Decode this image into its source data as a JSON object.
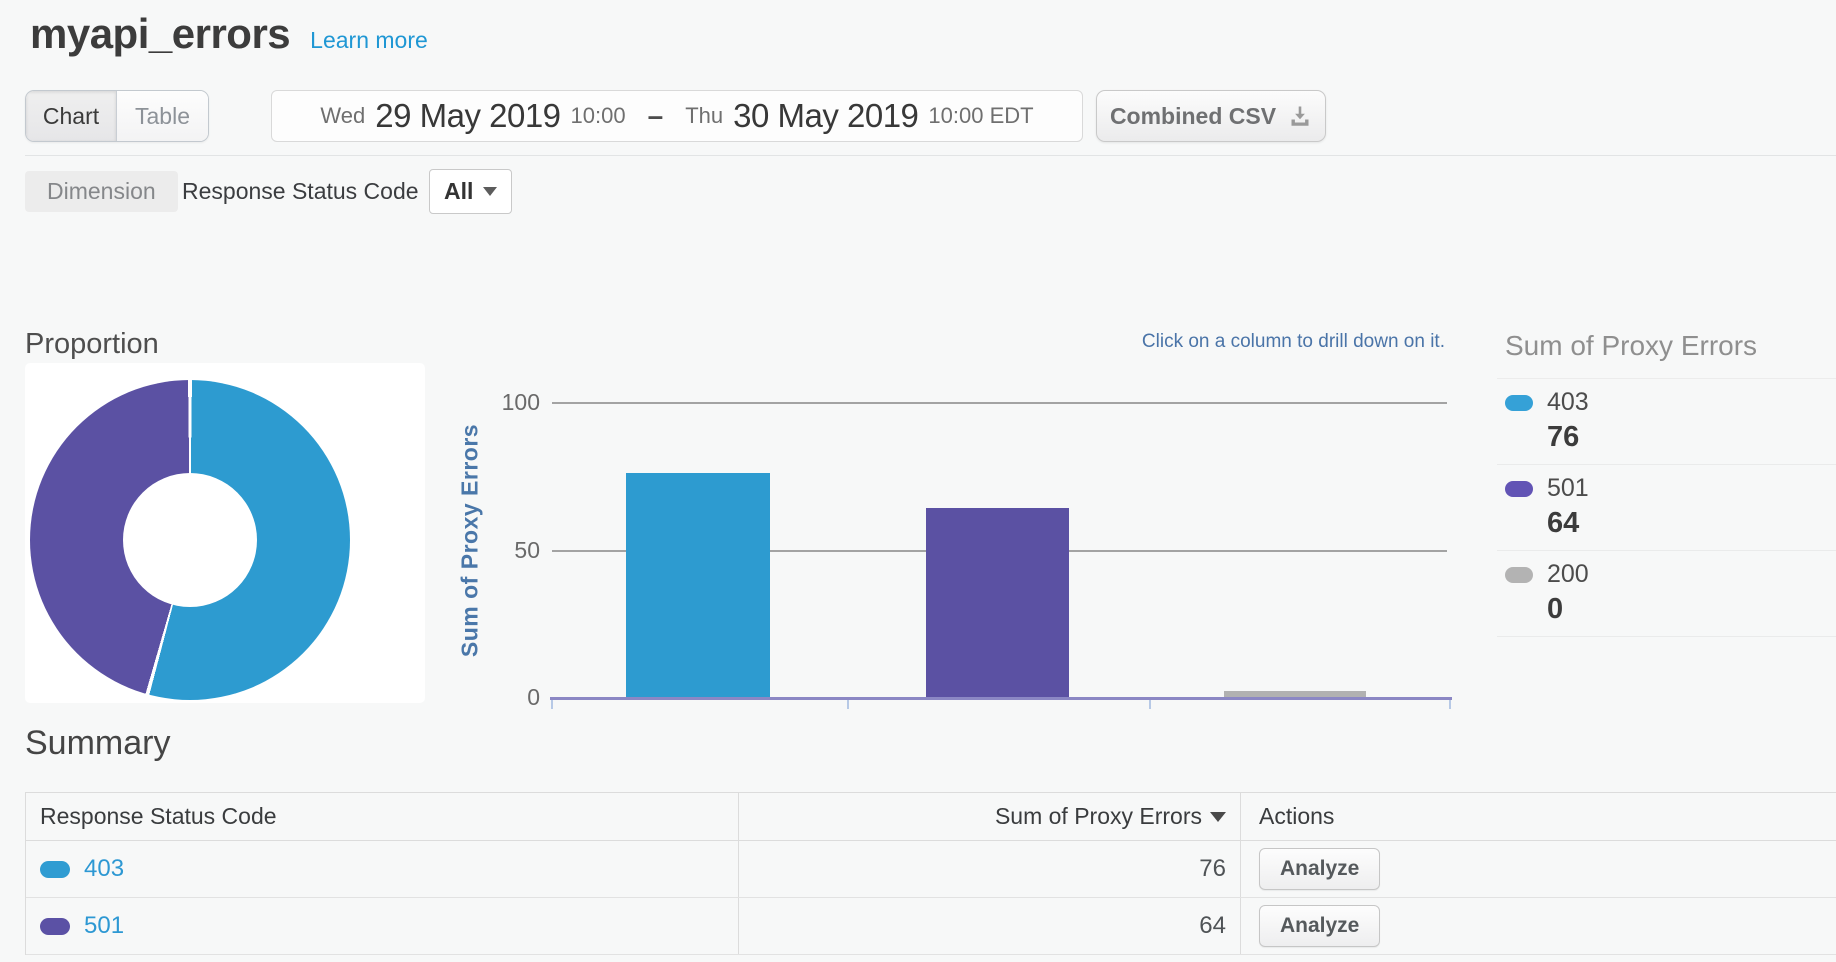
{
  "header": {
    "title": "myapi_errors",
    "learn_more": "Learn more"
  },
  "toolbar": {
    "view_toggle": {
      "chart": "Chart",
      "table": "Table",
      "selected": "Chart"
    },
    "date_range": {
      "start_day": "Wed",
      "start_date": "29 May 2019",
      "start_time": "10:00",
      "separator": "–",
      "end_day": "Thu",
      "end_date": "30 May 2019",
      "end_time": "10:00 EDT"
    },
    "csv_button": "Combined CSV"
  },
  "dimension": {
    "chip": "Dimension",
    "name": "Response Status Code",
    "filter_value": "All"
  },
  "proportion_title": "Proportion",
  "hint": "Click on a column to drill down on it.",
  "colors": {
    "blue": "#2d9bd0",
    "purple": "#5b51a3",
    "gray": "#b1b1b1",
    "axis": "#8b87c4",
    "link": "#2d98d3"
  },
  "chart_data": [
    {
      "type": "pie",
      "title": "Proportion",
      "labels": [
        "403",
        "501"
      ],
      "values": [
        76,
        64
      ],
      "colors": [
        "#2d9bd0",
        "#5b51a3"
      ],
      "donut": true,
      "legend_position": "none"
    },
    {
      "type": "bar",
      "categories": [
        "403",
        "501",
        "200"
      ],
      "values": [
        76,
        64,
        0
      ],
      "colors": [
        "#2d9bd0",
        "#5b51a3",
        "#b1b1b1"
      ],
      "title": "",
      "xlabel": "",
      "ylabel": "Sum of Proxy Errors",
      "ylim": [
        0,
        100
      ],
      "yticks": [
        0,
        50,
        100
      ],
      "grid": true,
      "legend_position": "right"
    }
  ],
  "axis": {
    "y_label": "Sum of Proxy Errors",
    "tick_100": "100",
    "tick_50": "50",
    "tick_0": "0"
  },
  "legend": {
    "title": "Sum of Proxy Errors",
    "items": [
      {
        "label": "403",
        "value": 76,
        "color": "#35a1d7"
      },
      {
        "label": "501",
        "value": 64,
        "color": "#6254b5"
      },
      {
        "label": "200",
        "value": 0,
        "color": "#b3b3b3"
      }
    ]
  },
  "summary": {
    "title": "Summary",
    "columns": {
      "dimension": "Response Status Code",
      "metric": "Sum of Proxy Errors",
      "actions": "Actions"
    },
    "rows": [
      {
        "label": "403",
        "value": 76,
        "color": "#2f9cd2",
        "action": "Analyze"
      },
      {
        "label": "501",
        "value": 64,
        "color": "#5b51a5",
        "action": "Analyze"
      }
    ]
  }
}
